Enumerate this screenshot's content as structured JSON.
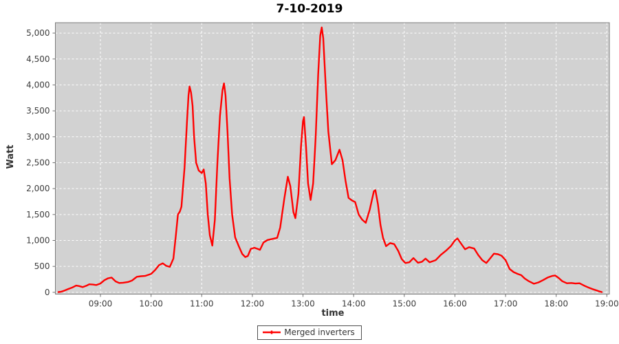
{
  "title": "7-10-2019",
  "legend": {
    "items": [
      {
        "label": "Merged inverters",
        "color": "#ff0000"
      }
    ]
  },
  "colors": {
    "plot_background": "#d2d2d2",
    "grid_line": "#ffffff",
    "plot_border": "#7a7a7a",
    "tick_mark": "#6e6e6e",
    "tick_label": "#3c3c3c",
    "series_red": "#ff0000",
    "title_text": "#000000",
    "axis_label_text": "#333333"
  },
  "chart_data": {
    "type": "line",
    "title": "7-10-2019",
    "xlabel": "time",
    "ylabel": "Watt",
    "legend_position": "bottom-center",
    "grid": "white dashed, horizontal and vertical",
    "xlim": [
      8.11,
      19.05
    ],
    "ylim": [
      -35,
      5200
    ],
    "x_tick_values": [
      9,
      10,
      11,
      12,
      13,
      14,
      15,
      16,
      17,
      18,
      19
    ],
    "x_tick_labels": [
      "09:00",
      "10:00",
      "11:00",
      "12:00",
      "13:00",
      "14:00",
      "15:00",
      "16:00",
      "17:00",
      "18:00",
      "19:00"
    ],
    "y_tick_values": [
      0,
      500,
      1000,
      1500,
      2000,
      2500,
      3000,
      3500,
      4000,
      4500,
      5000
    ],
    "y_tick_labels": [
      "0",
      "500",
      "1,000",
      "1,500",
      "2,000",
      "2,500",
      "3,000",
      "3,500",
      "4,000",
      "4,500",
      "5,000"
    ],
    "series": [
      {
        "name": "Merged inverters",
        "color": "#ff0000",
        "points": [
          [
            8.17,
            5
          ],
          [
            8.22,
            10
          ],
          [
            8.28,
            30
          ],
          [
            8.38,
            70
          ],
          [
            8.45,
            95
          ],
          [
            8.52,
            130
          ],
          [
            8.58,
            120
          ],
          [
            8.65,
            100
          ],
          [
            8.72,
            125
          ],
          [
            8.78,
            155
          ],
          [
            8.85,
            150
          ],
          [
            8.92,
            140
          ],
          [
            9.0,
            170
          ],
          [
            9.08,
            235
          ],
          [
            9.15,
            270
          ],
          [
            9.22,
            285
          ],
          [
            9.3,
            210
          ],
          [
            9.37,
            180
          ],
          [
            9.45,
            185
          ],
          [
            9.55,
            200
          ],
          [
            9.62,
            225
          ],
          [
            9.68,
            270
          ],
          [
            9.72,
            300
          ],
          [
            9.8,
            310
          ],
          [
            9.88,
            315
          ],
          [
            10.0,
            355
          ],
          [
            10.08,
            430
          ],
          [
            10.16,
            525
          ],
          [
            10.23,
            560
          ],
          [
            10.3,
            510
          ],
          [
            10.37,
            490
          ],
          [
            10.44,
            650
          ],
          [
            10.49,
            1100
          ],
          [
            10.53,
            1500
          ],
          [
            10.57,
            1560
          ],
          [
            10.6,
            1650
          ],
          [
            10.66,
            2400
          ],
          [
            10.71,
            3300
          ],
          [
            10.74,
            3800
          ],
          [
            10.76,
            3970
          ],
          [
            10.79,
            3850
          ],
          [
            10.82,
            3600
          ],
          [
            10.85,
            3000
          ],
          [
            10.89,
            2500
          ],
          [
            10.94,
            2350
          ],
          [
            11.0,
            2300
          ],
          [
            11.04,
            2370
          ],
          [
            11.08,
            2100
          ],
          [
            11.12,
            1500
          ],
          [
            11.16,
            1100
          ],
          [
            11.21,
            900
          ],
          [
            11.26,
            1400
          ],
          [
            11.31,
            2500
          ],
          [
            11.36,
            3400
          ],
          [
            11.41,
            3900
          ],
          [
            11.44,
            4030
          ],
          [
            11.47,
            3800
          ],
          [
            11.51,
            3100
          ],
          [
            11.55,
            2200
          ],
          [
            11.6,
            1500
          ],
          [
            11.66,
            1060
          ],
          [
            11.74,
            870
          ],
          [
            11.8,
            740
          ],
          [
            11.86,
            680
          ],
          [
            11.91,
            700
          ],
          [
            11.97,
            840
          ],
          [
            12.04,
            860
          ],
          [
            12.1,
            840
          ],
          [
            12.15,
            820
          ],
          [
            12.22,
            960
          ],
          [
            12.3,
            1010
          ],
          [
            12.4,
            1030
          ],
          [
            12.49,
            1050
          ],
          [
            12.55,
            1250
          ],
          [
            12.63,
            1800
          ],
          [
            12.7,
            2230
          ],
          [
            12.75,
            2050
          ],
          [
            12.81,
            1550
          ],
          [
            12.85,
            1430
          ],
          [
            12.91,
            1900
          ],
          [
            12.96,
            2800
          ],
          [
            13.0,
            3300
          ],
          [
            13.02,
            3380
          ],
          [
            13.06,
            2800
          ],
          [
            13.1,
            2100
          ],
          [
            13.15,
            1780
          ],
          [
            13.2,
            2100
          ],
          [
            13.25,
            3000
          ],
          [
            13.3,
            4200
          ],
          [
            13.34,
            4950
          ],
          [
            13.37,
            5110
          ],
          [
            13.4,
            4900
          ],
          [
            13.45,
            3950
          ],
          [
            13.5,
            3100
          ],
          [
            13.57,
            2470
          ],
          [
            13.64,
            2550
          ],
          [
            13.72,
            2750
          ],
          [
            13.78,
            2550
          ],
          [
            13.84,
            2150
          ],
          [
            13.9,
            1820
          ],
          [
            13.97,
            1770
          ],
          [
            14.03,
            1740
          ],
          [
            14.1,
            1500
          ],
          [
            14.17,
            1400
          ],
          [
            14.24,
            1340
          ],
          [
            14.32,
            1600
          ],
          [
            14.4,
            1950
          ],
          [
            14.43,
            1970
          ],
          [
            14.48,
            1700
          ],
          [
            14.53,
            1300
          ],
          [
            14.58,
            1050
          ],
          [
            14.64,
            890
          ],
          [
            14.72,
            950
          ],
          [
            14.8,
            930
          ],
          [
            14.88,
            800
          ],
          [
            14.95,
            640
          ],
          [
            15.02,
            565
          ],
          [
            15.1,
            580
          ],
          [
            15.18,
            660
          ],
          [
            15.27,
            570
          ],
          [
            15.35,
            590
          ],
          [
            15.42,
            650
          ],
          [
            15.5,
            580
          ],
          [
            15.62,
            620
          ],
          [
            15.72,
            720
          ],
          [
            15.82,
            800
          ],
          [
            15.92,
            890
          ],
          [
            16.0,
            1000
          ],
          [
            16.05,
            1040
          ],
          [
            16.12,
            940
          ],
          [
            16.2,
            830
          ],
          [
            16.28,
            870
          ],
          [
            16.38,
            845
          ],
          [
            16.46,
            720
          ],
          [
            16.54,
            620
          ],
          [
            16.62,
            565
          ],
          [
            16.7,
            660
          ],
          [
            16.77,
            745
          ],
          [
            16.85,
            735
          ],
          [
            16.92,
            705
          ],
          [
            17.0,
            620
          ],
          [
            17.08,
            450
          ],
          [
            17.16,
            390
          ],
          [
            17.24,
            355
          ],
          [
            17.31,
            330
          ],
          [
            17.38,
            265
          ],
          [
            17.46,
            215
          ],
          [
            17.56,
            165
          ],
          [
            17.65,
            190
          ],
          [
            17.74,
            235
          ],
          [
            17.83,
            285
          ],
          [
            17.92,
            315
          ],
          [
            17.98,
            325
          ],
          [
            18.05,
            275
          ],
          [
            18.12,
            215
          ],
          [
            18.21,
            175
          ],
          [
            18.3,
            180
          ],
          [
            18.38,
            170
          ],
          [
            18.46,
            175
          ],
          [
            18.55,
            130
          ],
          [
            18.63,
            95
          ],
          [
            18.72,
            60
          ],
          [
            18.8,
            35
          ],
          [
            18.86,
            15
          ],
          [
            18.9,
            5
          ]
        ]
      }
    ]
  }
}
